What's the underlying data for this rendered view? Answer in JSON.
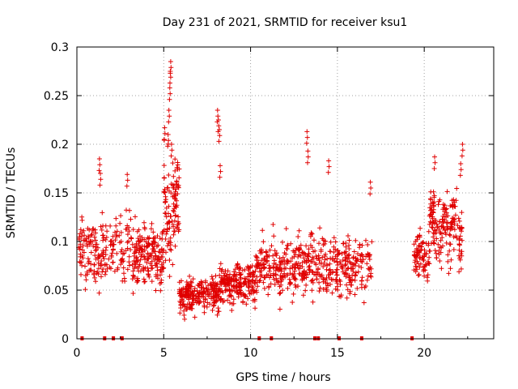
{
  "chart_data": {
    "type": "scatter",
    "title": "Day 231 of 2021, SRMTID for receiver ksu1",
    "xlabel": "GPS time / hours",
    "ylabel": "SRMTID / TECUs",
    "xlim": [
      0,
      24
    ],
    "ylim": [
      0,
      0.3
    ],
    "xticks": [
      0,
      5,
      10,
      15,
      20
    ],
    "xtick_labels": [
      "0",
      "5",
      "10",
      "15",
      "20"
    ],
    "yticks": [
      0,
      0.05,
      0.1,
      0.15,
      0.2,
      0.25,
      0.3
    ],
    "ytick_labels": [
      "0",
      "0.05",
      "0.1",
      "0.15",
      "0.2",
      "0.25",
      "0.3"
    ],
    "grid": true,
    "marker": "+",
    "color": "#e00000",
    "gap_markers_x": [
      0.3,
      1.6,
      2.1,
      2.6,
      10.5,
      11.2,
      13.7,
      13.9,
      15.1,
      16.4,
      19.3
    ],
    "segments": [
      {
        "x_start": 0.0,
        "x_end": 3.3,
        "y_mid": 0.09,
        "y_spread": 0.035,
        "n": 220
      },
      {
        "x_start": 3.3,
        "x_end": 5.0,
        "y_mid": 0.085,
        "y_spread": 0.035,
        "n": 170
      },
      {
        "x_start": 5.0,
        "x_end": 5.9,
        "y_mid": 0.13,
        "y_spread": 0.06,
        "n": 110
      },
      {
        "x_start": 5.9,
        "x_end": 8.2,
        "y_mid": 0.045,
        "y_spread": 0.02,
        "n": 230
      },
      {
        "x_start": 8.2,
        "x_end": 10.3,
        "y_mid": 0.055,
        "y_spread": 0.02,
        "n": 210
      },
      {
        "x_start": 10.3,
        "x_end": 13.4,
        "y_mid": 0.075,
        "y_spread": 0.03,
        "n": 250
      },
      {
        "x_start": 13.4,
        "x_end": 17.0,
        "y_mid": 0.075,
        "y_spread": 0.035,
        "n": 260
      },
      {
        "x_start": 19.4,
        "x_end": 20.3,
        "y_mid": 0.085,
        "y_spread": 0.025,
        "n": 80
      },
      {
        "x_start": 20.3,
        "x_end": 22.2,
        "y_mid": 0.115,
        "y_spread": 0.04,
        "n": 180
      }
    ],
    "spikes": [
      {
        "x": 5.05,
        "y": 0.217
      },
      {
        "x": 5.25,
        "y": 0.21
      },
      {
        "x": 5.3,
        "y": 0.235
      },
      {
        "x": 5.35,
        "y": 0.258
      },
      {
        "x": 5.38,
        "y": 0.275
      },
      {
        "x": 5.4,
        "y": 0.285
      },
      {
        "x": 5.45,
        "y": 0.2
      },
      {
        "x": 8.1,
        "y": 0.235
      },
      {
        "x": 8.15,
        "y": 0.225
      },
      {
        "x": 8.2,
        "y": 0.215
      },
      {
        "x": 8.25,
        "y": 0.178
      },
      {
        "x": 1.3,
        "y": 0.185
      },
      {
        "x": 1.35,
        "y": 0.17
      },
      {
        "x": 2.9,
        "y": 0.169
      },
      {
        "x": 13.25,
        "y": 0.213
      },
      {
        "x": 13.3,
        "y": 0.193
      },
      {
        "x": 14.5,
        "y": 0.183
      },
      {
        "x": 16.9,
        "y": 0.161
      },
      {
        "x": 20.6,
        "y": 0.187
      },
      {
        "x": 22.2,
        "y": 0.2
      },
      {
        "x": 22.1,
        "y": 0.18
      }
    ]
  }
}
